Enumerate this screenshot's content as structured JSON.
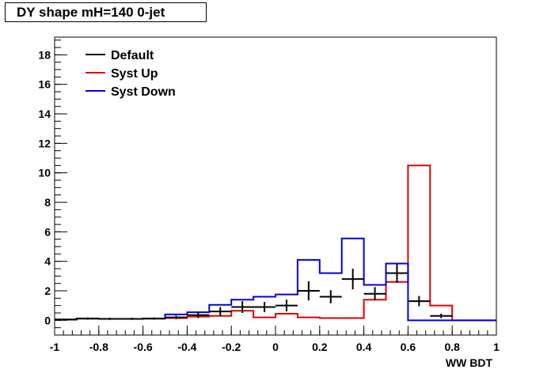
{
  "chart_data": {
    "type": "line",
    "title": "DY shape mH=140 0-jet",
    "xlabel": "WW BDT",
    "ylabel": "",
    "xlim": [
      -1,
      1
    ],
    "ylim": [
      -1,
      19.2
    ],
    "x_ticks": [
      -1,
      -0.8,
      -0.6,
      -0.4,
      -0.2,
      0,
      0.2,
      0.4,
      0.6,
      0.8,
      1
    ],
    "x_tick_labels": [
      "-1",
      "-0.8",
      "-0.6",
      "-0.4",
      "-0.2",
      "0",
      "0.2",
      "0.4",
      "0.6",
      "0.8",
      "1"
    ],
    "y_ticks": [
      0,
      2,
      4,
      6,
      8,
      10,
      12,
      14,
      16,
      18
    ],
    "y_tick_labels": [
      "0",
      "2",
      "4",
      "6",
      "8",
      "10",
      "12",
      "14",
      "16",
      "18"
    ],
    "grid": false,
    "legend_position": "top-left",
    "bin_edges": [
      -1,
      -0.9,
      -0.8,
      -0.7,
      -0.6,
      -0.5,
      -0.4,
      -0.3,
      -0.2,
      -0.1,
      0,
      0.1,
      0.2,
      0.3,
      0.4,
      0.5,
      0.6,
      0.7,
      0.8,
      0.9,
      1
    ],
    "series": [
      {
        "name": "Default",
        "color": "#000000",
        "style": "points",
        "values": [
          0.05,
          0.12,
          0.1,
          0.1,
          0.12,
          0.2,
          0.35,
          0.6,
          0.9,
          0.9,
          1.0,
          2.0,
          1.6,
          2.8,
          1.8,
          3.2,
          1.3,
          0.3,
          0.0,
          0.0
        ],
        "errors": [
          0.05,
          0.08,
          0.07,
          0.07,
          0.08,
          0.12,
          0.2,
          0.3,
          0.4,
          0.35,
          0.4,
          0.65,
          0.45,
          0.7,
          0.45,
          0.65,
          0.35,
          0.15,
          0.0,
          0.0
        ]
      },
      {
        "name": "Syst Up",
        "color": "#e00000",
        "style": "step",
        "values": [
          0.05,
          0.12,
          0.1,
          0.1,
          0.12,
          0.15,
          0.25,
          0.3,
          0.65,
          0.2,
          0.45,
          0.2,
          0.15,
          0.15,
          1.4,
          2.6,
          10.5,
          1.0,
          0.0,
          0.0
        ]
      },
      {
        "name": "Syst Down",
        "color": "#0000dd",
        "style": "step",
        "values": [
          0.05,
          0.12,
          0.1,
          0.1,
          0.12,
          0.4,
          0.55,
          1.05,
          1.4,
          1.6,
          1.75,
          4.1,
          3.2,
          5.55,
          2.4,
          3.85,
          0.0,
          0.0,
          0.0,
          0.0
        ]
      }
    ]
  }
}
